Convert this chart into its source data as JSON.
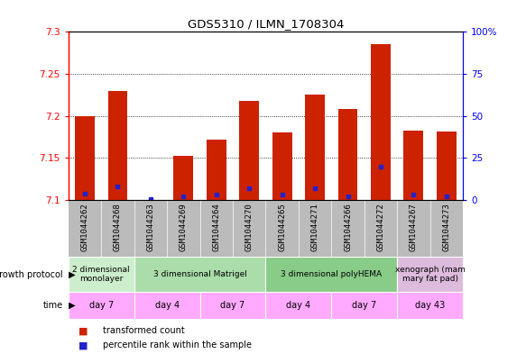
{
  "title": "GDS5310 / ILMN_1708304",
  "samples": [
    "GSM1044262",
    "GSM1044268",
    "GSM1044263",
    "GSM1044269",
    "GSM1044264",
    "GSM1044270",
    "GSM1044265",
    "GSM1044271",
    "GSM1044266",
    "GSM1044272",
    "GSM1044267",
    "GSM1044273"
  ],
  "transformed_counts": [
    7.2,
    7.23,
    7.1,
    7.153,
    7.172,
    7.218,
    7.18,
    7.225,
    7.208,
    7.285,
    7.183,
    7.182
  ],
  "percentile_ranks": [
    4,
    8,
    0.5,
    2,
    3,
    7,
    3,
    7,
    2,
    20,
    3,
    2
  ],
  "ylim_left": [
    7.1,
    7.3
  ],
  "ylim_right": [
    0,
    100
  ],
  "yticks_left": [
    7.1,
    7.15,
    7.2,
    7.25,
    7.3
  ],
  "yticks_right": [
    0,
    25,
    50,
    75,
    100
  ],
  "ytick_labels_right": [
    "0",
    "25",
    "50",
    "75",
    "100%"
  ],
  "bar_color": "#cc2200",
  "percentile_color": "#2222cc",
  "grid_color": "#000000",
  "sample_bg_color": "#bbbbbb",
  "growth_protocol_groups": [
    {
      "label": "2 dimensional\nmonolayer",
      "start": 0,
      "end": 2,
      "color": "#cceecc"
    },
    {
      "label": "3 dimensional Matrigel",
      "start": 2,
      "end": 6,
      "color": "#aaddaa"
    },
    {
      "label": "3 dimensional polyHEMA",
      "start": 6,
      "end": 10,
      "color": "#88cc88"
    },
    {
      "label": "xenograph (mam\nmary fat pad)",
      "start": 10,
      "end": 12,
      "color": "#ddbbdd"
    }
  ],
  "time_groups": [
    {
      "label": "day 7",
      "start": 0,
      "end": 2,
      "color": "#ffaaff"
    },
    {
      "label": "day 4",
      "start": 2,
      "end": 4,
      "color": "#ffaaff"
    },
    {
      "label": "day 7",
      "start": 4,
      "end": 6,
      "color": "#ffaaff"
    },
    {
      "label": "day 4",
      "start": 6,
      "end": 8,
      "color": "#ffaaff"
    },
    {
      "label": "day 7",
      "start": 8,
      "end": 10,
      "color": "#ffaaff"
    },
    {
      "label": "day 43",
      "start": 10,
      "end": 12,
      "color": "#ffaaff"
    }
  ],
  "legend_items": [
    {
      "label": "transformed count",
      "color": "#cc2200"
    },
    {
      "label": "percentile rank within the sample",
      "color": "#2222cc"
    }
  ]
}
